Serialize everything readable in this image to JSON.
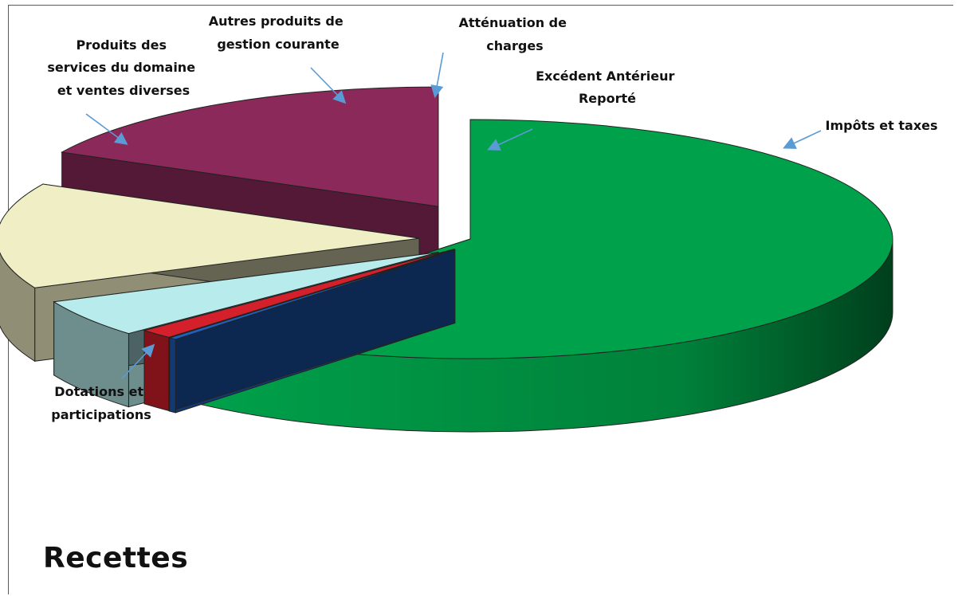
{
  "chart_data": {
    "type": "pie",
    "style": "3d-exploded",
    "title": "Recettes",
    "slices": [
      {
        "name": "Impôts et taxes",
        "value": 61.5,
        "color": "#00a14b"
      },
      {
        "name": "Atténuation de charges",
        "value": 0.3,
        "color": "#1f5fbf"
      },
      {
        "name": "Excédent Antérieur Reporté",
        "value": 1.3,
        "color": "#d4202a"
      },
      {
        "name": "Autres produits de gestion courante",
        "value": 5.1,
        "color": "#b8ecec"
      },
      {
        "name": "Produits des services du domaine et ventes diverses",
        "value": 14.3,
        "color": "#f0eec4"
      },
      {
        "name": "Dotations et participations",
        "value": 17.5,
        "color": "#8b2a5a"
      }
    ],
    "legend": "none (callout labels with arrows)"
  },
  "labels": {
    "impots": [
      "Impôts et taxes"
    ],
    "attenuation": [
      "Atténuation de",
      "charges"
    ],
    "excedent": [
      "Excédent Antérieur",
      "Reporté"
    ],
    "autres": [
      "Autres produits de",
      "gestion courante"
    ],
    "produits": [
      "Produits des",
      "services du domaine",
      "et ventes diverses"
    ],
    "dotations": [
      "Dotations et",
      "participations"
    ]
  }
}
